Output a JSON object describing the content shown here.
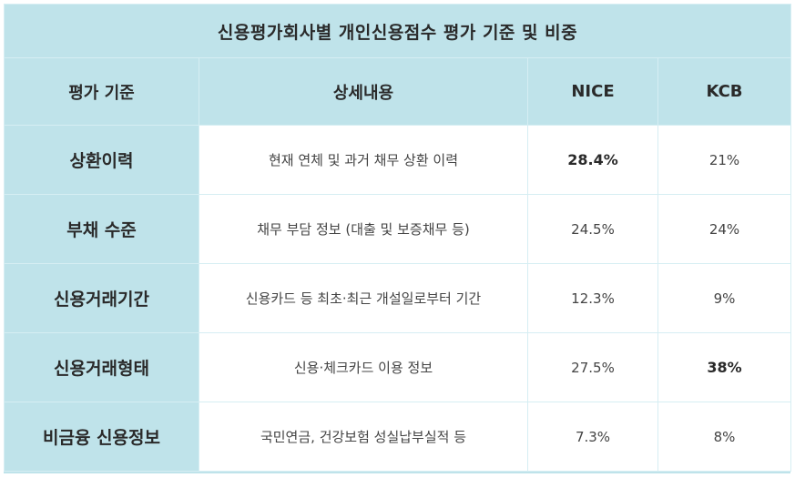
{
  "title": "신용평가회사별 개인신용점수 평가 기준 및 비중",
  "headers": {
    "criterion": "평가 기준",
    "detail": "상세내용",
    "nice": "NICE",
    "kcb": "KCB"
  },
  "rows": [
    {
      "criterion": "상환이력",
      "detail": "현재 연체 및 과거 채무 상환 이력",
      "nice": "28.4%",
      "kcb": "21%"
    },
    {
      "criterion": "부채 수준",
      "detail": "채무 부담 정보 (대출 및 보증채무 등)",
      "nice": "24.5%",
      "kcb": "24%"
    },
    {
      "criterion": "신용거래기간",
      "detail": "신용카드 등 최초·최근 개설일로부터 기간",
      "nice": "12.3%",
      "kcb": "9%"
    },
    {
      "criterion": "신용거래형태",
      "detail": "신용·체크카드 이용 정보",
      "nice": "27.5%",
      "kcb": "38%"
    },
    {
      "criterion": "비금융 신용정보",
      "detail": "국민연금, 건강보험 성실납부실적 등",
      "nice": "7.3%",
      "kcb": "8%"
    }
  ],
  "colors": {
    "header_bg": "#bfe3ea",
    "cell_bg": "#ffffff",
    "grid_line": "#d6eef3"
  }
}
